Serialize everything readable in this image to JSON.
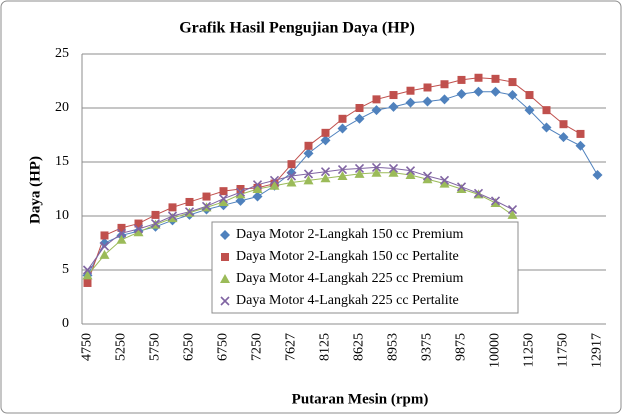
{
  "chart_data": {
    "type": "line",
    "title": "Grafik Hasil Pengujian Daya (HP)",
    "x_label": "Putaran Mesin (rpm)",
    "y_label": "Daya (HP)",
    "categories": [
      "4750",
      null,
      "5250",
      null,
      "5750",
      null,
      "6250",
      null,
      "6750",
      null,
      "7250",
      null,
      "7627",
      null,
      "8125",
      null,
      "8625",
      null,
      "8953",
      null,
      "9375",
      null,
      "9875",
      null,
      "10000",
      null,
      "11250",
      null,
      "11750",
      null,
      "12917"
    ],
    "series": [
      {
        "name": "Daya Motor 2-Langkah 150 cc Premium",
        "color": "#4f81bd",
        "marker": "diamond",
        "values": [
          4.5,
          7.5,
          8.2,
          8.6,
          9.0,
          9.6,
          10.1,
          10.6,
          11.0,
          11.4,
          11.8,
          12.8,
          14.0,
          15.8,
          17.0,
          18.1,
          19.0,
          19.8,
          20.1,
          20.5,
          20.6,
          20.8,
          21.3,
          21.5,
          21.5,
          21.2,
          19.8,
          18.2,
          17.3,
          16.5,
          13.8
        ]
      },
      {
        "name": "Daya Motor 2-Langkah 150 cc Pertalite",
        "color": "#c0504d",
        "marker": "square",
        "values": [
          3.8,
          8.2,
          8.9,
          9.3,
          10.1,
          10.8,
          11.3,
          11.8,
          12.3,
          12.5,
          12.6,
          13.0,
          14.8,
          16.5,
          17.7,
          19.0,
          20.0,
          20.8,
          21.2,
          21.6,
          21.9,
          22.2,
          22.6,
          22.8,
          22.7,
          22.4,
          21.2,
          19.8,
          18.5,
          17.6,
          null
        ]
      },
      {
        "name": "Daya Motor 4-Langkah  225 cc Premium",
        "color": "#9bbb59",
        "marker": "triangle",
        "values": [
          4.5,
          6.4,
          7.8,
          8.5,
          9.2,
          9.8,
          10.3,
          10.8,
          11.3,
          12.0,
          12.5,
          12.8,
          13.1,
          13.3,
          13.5,
          13.7,
          13.9,
          14.0,
          14.0,
          13.8,
          13.4,
          13.0,
          12.5,
          12.0,
          11.2,
          10.1,
          null,
          null,
          null,
          null,
          null
        ]
      },
      {
        "name": "Daya Motor 4-Langkah 225 cc Pertalite",
        "color": "#8064a2",
        "marker": "x",
        "values": [
          5.0,
          7.2,
          8.4,
          8.8,
          9.3,
          10.0,
          10.4,
          10.9,
          11.6,
          12.2,
          12.9,
          13.3,
          13.7,
          13.9,
          14.1,
          14.3,
          14.4,
          14.5,
          14.4,
          14.2,
          13.7,
          13.3,
          12.7,
          12.1,
          11.4,
          10.6,
          null,
          null,
          null,
          null,
          null
        ]
      }
    ],
    "ylim": [
      0,
      25
    ],
    "yticks": [
      0,
      5,
      10,
      15,
      20,
      25
    ],
    "grid": true
  }
}
